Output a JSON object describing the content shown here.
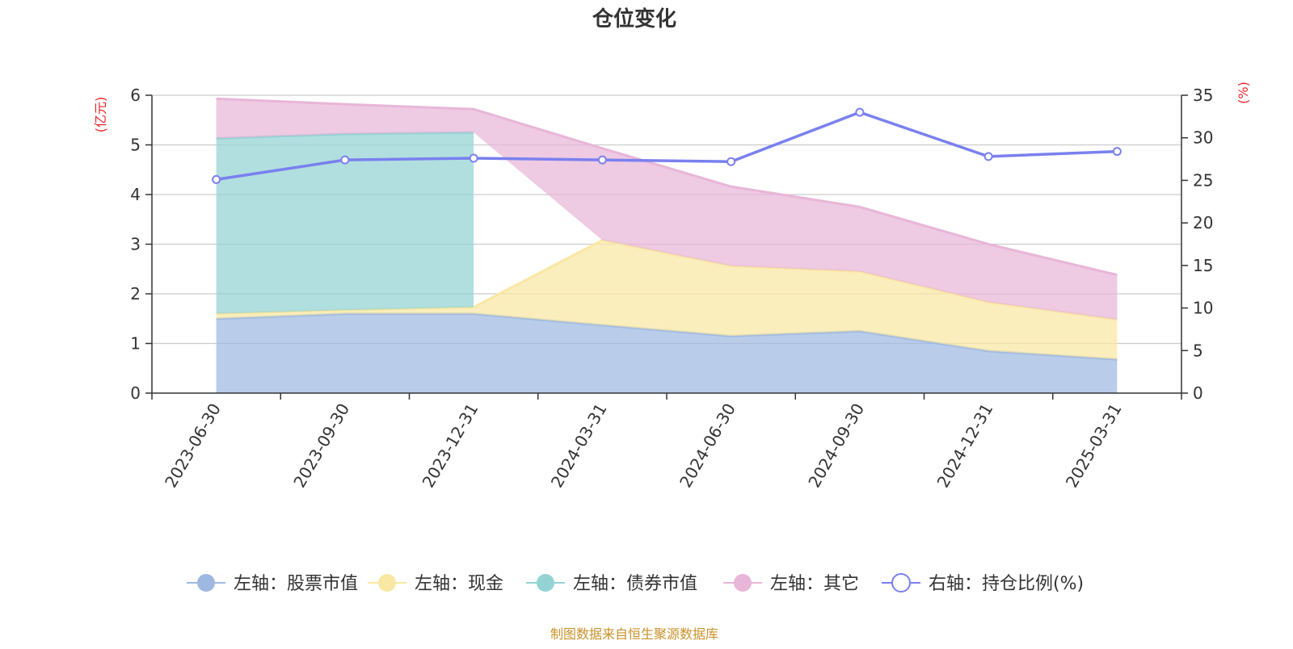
{
  "chart_data": {
    "type": "area",
    "title": "仓位变化",
    "source_note": "制图数据来自恒生聚源数据库",
    "y_left_label": "(亿元)",
    "y_right_label": "(%)",
    "y_left_lim": [
      0,
      6
    ],
    "y_left_ticks": [
      "0",
      "1",
      "2",
      "3",
      "4",
      "5",
      "6"
    ],
    "y_right_lim": [
      0,
      35
    ],
    "y_right_ticks": [
      "0",
      "5",
      "10",
      "15",
      "20",
      "25",
      "30",
      "35"
    ],
    "grid": true,
    "legend_position": "bottom",
    "categories": [
      "2023-06-30",
      "2023-09-30",
      "2023-12-31",
      "2024-03-31",
      "2024-06-30",
      "2024-09-30",
      "2024-12-31",
      "2025-03-31"
    ],
    "stacked_series": [
      {
        "name": "左轴：股票市值",
        "color": "#9eb9e1",
        "values": [
          1.5,
          1.6,
          1.6,
          1.37,
          1.15,
          1.25,
          0.85,
          0.68
        ]
      },
      {
        "name": "左轴：现金",
        "color": "#f9e7a4",
        "values": [
          0.1,
          0.07,
          0.13,
          1.71,
          1.41,
          1.2,
          0.98,
          0.8
        ]
      },
      {
        "name": "左轴：债券市值",
        "color": "#93d3d3",
        "values": [
          3.53,
          3.55,
          3.52,
          0,
          0,
          0,
          0,
          0
        ]
      },
      {
        "name": "左轴：其它",
        "color": "#e8b6d8",
        "values": [
          0.8,
          0.6,
          0.47,
          1.85,
          1.6,
          1.3,
          1.17,
          0.9
        ]
      }
    ],
    "line_series": {
      "name": "右轴：持仓比例(%)",
      "color": "#7a80ee",
      "values": [
        25.1,
        27.4,
        27.6,
        27.4,
        27.2,
        33.0,
        27.8,
        28.4
      ]
    }
  }
}
